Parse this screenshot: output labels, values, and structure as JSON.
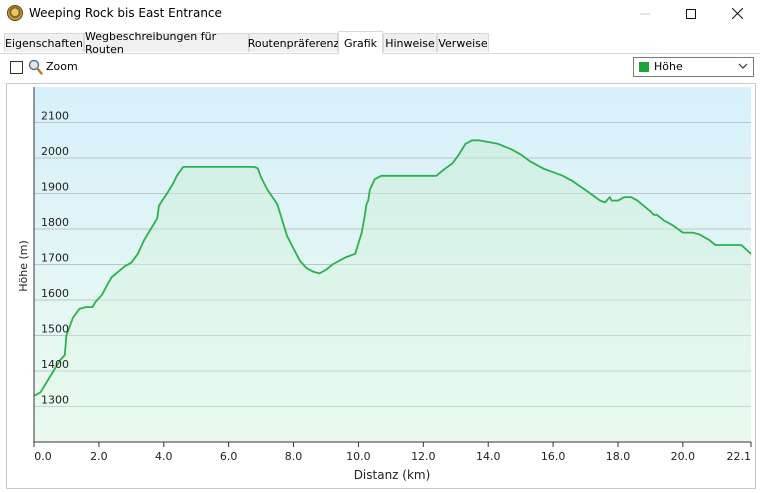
{
  "window": {
    "title": "Weeping Rock bis East Entrance"
  },
  "tabs": [
    {
      "label": "Eigenschaften"
    },
    {
      "label": "Wegbeschreibungen für Routen"
    },
    {
      "label": "Routenpräferenz"
    },
    {
      "label": "Grafik"
    },
    {
      "label": "Hinweise"
    },
    {
      "label": "Verweise"
    }
  ],
  "active_tab": "Grafik",
  "toolbar": {
    "zoom_label": "Zoom",
    "zoom_checked": false
  },
  "series_select": {
    "selected": "Höhe",
    "swatch_color": "#1ca53c"
  },
  "chart_data": {
    "type": "area",
    "xlabel": "Distanz  (km)",
    "ylabel": "Höhe (m)",
    "x_ticks": [
      "0.0",
      "2.0",
      "4.0",
      "6.0",
      "8.0",
      "10.0",
      "12.0",
      "14.0",
      "16.0",
      "18.0",
      "20.0",
      "22.1"
    ],
    "y_ticks": [
      "1300",
      "1400",
      "1500",
      "1600",
      "1700",
      "1800",
      "1900",
      "2000",
      "2100"
    ],
    "xlim": [
      0,
      22.1
    ],
    "ylim": [
      1200,
      2200
    ],
    "grid": true,
    "series": [
      {
        "color": "#2bb24a",
        "x": [
          0,
          0.2,
          0.4,
          0.6,
          0.8,
          0.95,
          1.0,
          1.2,
          1.4,
          1.6,
          1.8,
          1.9,
          2.1,
          2.3,
          2.4,
          2.6,
          2.8,
          3.0,
          3.2,
          3.4,
          3.6,
          3.8,
          3.85,
          3.95,
          4.1,
          4.3,
          4.4,
          4.6,
          5.0,
          5.5,
          6.0,
          6.5,
          6.8,
          6.9,
          7.0,
          7.2,
          7.5,
          7.8,
          8.0,
          8.2,
          8.4,
          8.6,
          8.8,
          9.0,
          9.2,
          9.4,
          9.6,
          9.9,
          10.1,
          10.2,
          10.25,
          10.3,
          10.35,
          10.5,
          10.7,
          11.0,
          11.5,
          12.0,
          12.4,
          12.6,
          12.9,
          13.1,
          13.3,
          13.5,
          13.7,
          14.0,
          14.3,
          14.7,
          15.0,
          15.3,
          15.7,
          16.0,
          16.3,
          16.6,
          17.0,
          17.3,
          17.45,
          17.6,
          17.7,
          17.75,
          17.8,
          18.0,
          18.2,
          18.4,
          18.6,
          18.8,
          19.0,
          19.1,
          19.2,
          19.4,
          19.7,
          20.0,
          20.3,
          20.5,
          20.8,
          21.0,
          21.2,
          21.5,
          21.8,
          22.1
        ],
        "y": [
          1330,
          1340,
          1370,
          1400,
          1430,
          1445,
          1500,
          1550,
          1575,
          1580,
          1580,
          1595,
          1615,
          1650,
          1665,
          1680,
          1695,
          1705,
          1730,
          1770,
          1800,
          1830,
          1865,
          1880,
          1900,
          1930,
          1950,
          1975,
          1975,
          1975,
          1975,
          1975,
          1975,
          1970,
          1945,
          1910,
          1870,
          1780,
          1745,
          1710,
          1690,
          1680,
          1675,
          1685,
          1700,
          1710,
          1720,
          1730,
          1790,
          1840,
          1870,
          1880,
          1910,
          1940,
          1950,
          1950,
          1950,
          1950,
          1950,
          1965,
          1985,
          2010,
          2040,
          2050,
          2050,
          2045,
          2040,
          2025,
          2010,
          1990,
          1970,
          1960,
          1950,
          1935,
          1910,
          1890,
          1880,
          1875,
          1885,
          1890,
          1880,
          1880,
          1890,
          1890,
          1880,
          1865,
          1850,
          1840,
          1840,
          1825,
          1810,
          1790,
          1790,
          1785,
          1770,
          1755,
          1755,
          1755,
          1755,
          1730
        ]
      }
    ]
  }
}
